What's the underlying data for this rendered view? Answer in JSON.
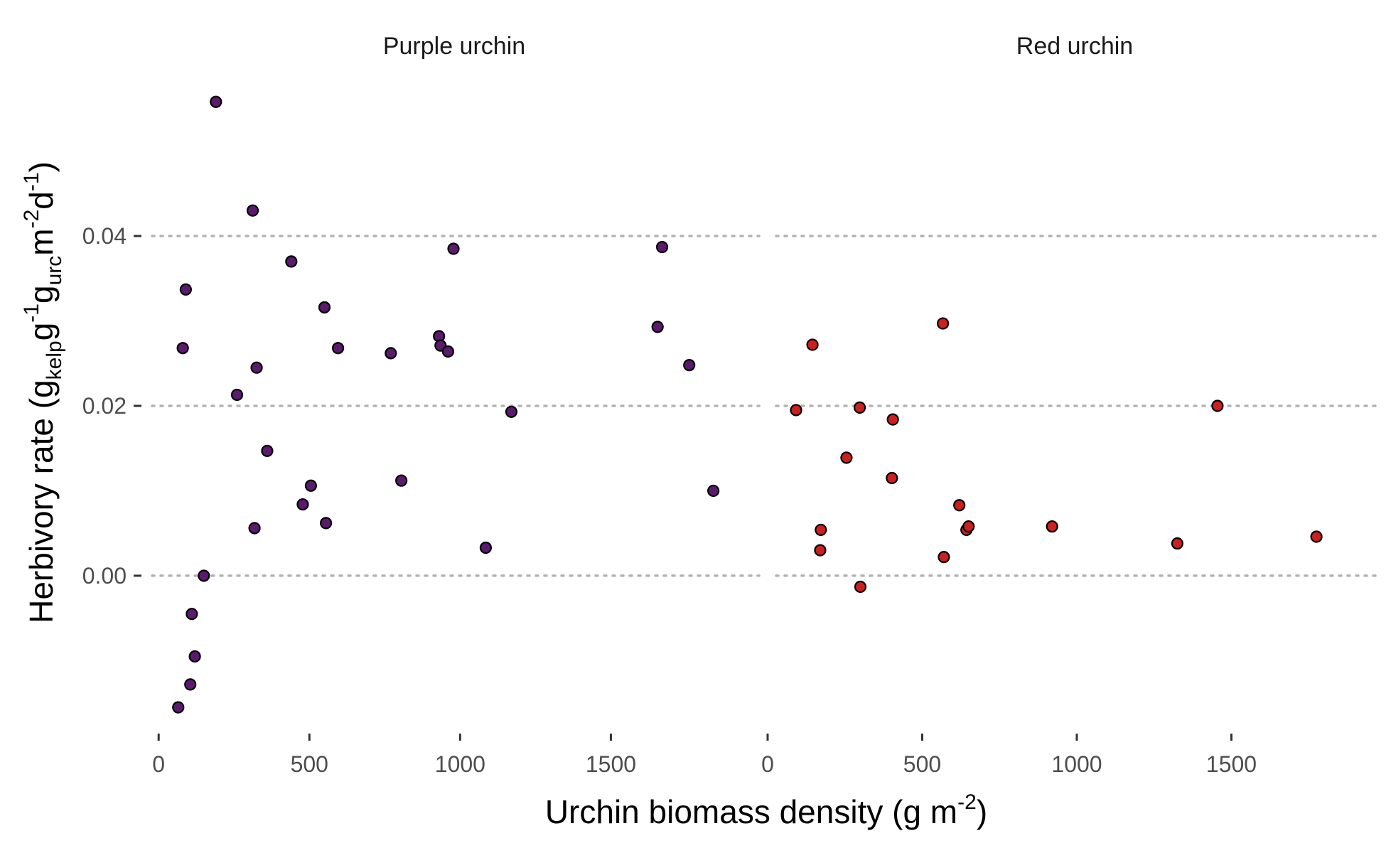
{
  "chart_data": {
    "type": "scatter",
    "xlabel": {
      "main": "Urchin biomass density (g m",
      "sup": "-2",
      "close": ")"
    },
    "ylabel": {
      "main": "Herbivory rate (g",
      "sub1": "kelp",
      "mid1": "g",
      "sup1": "-1",
      "mid2": "g",
      "sub2": "urc",
      "mid3": "m",
      "sup2": "-2",
      "mid4": "d",
      "sup3": "-1",
      "close": ")"
    },
    "y_ticks": [
      {
        "value": 0.0,
        "label": "0.00"
      },
      {
        "value": 0.02,
        "label": "0.02"
      },
      {
        "value": 0.04,
        "label": "0.04"
      }
    ],
    "ylim": [
      -0.018,
      0.059
    ],
    "grid": "horizontal-dotted",
    "legend": "none",
    "panels": [
      {
        "title": "Purple urchin",
        "color": "#5b1a6e",
        "xlim": [
          -50,
          2020
        ],
        "x_ticks": [
          {
            "value": 0,
            "label": "0"
          },
          {
            "value": 500,
            "label": "500"
          },
          {
            "value": 1000,
            "label": "1000"
          },
          {
            "value": 1500,
            "label": "1500"
          }
        ],
        "points": [
          {
            "x": 190,
            "y": 0.0558
          },
          {
            "x": 312,
            "y": 0.043
          },
          {
            "x": 440,
            "y": 0.037
          },
          {
            "x": 90,
            "y": 0.0337
          },
          {
            "x": 550,
            "y": 0.0316
          },
          {
            "x": 80,
            "y": 0.0268
          },
          {
            "x": 595,
            "y": 0.0268
          },
          {
            "x": 770,
            "y": 0.0262
          },
          {
            "x": 325,
            "y": 0.0245
          },
          {
            "x": 260,
            "y": 0.0213
          },
          {
            "x": 360,
            "y": 0.0147
          },
          {
            "x": 505,
            "y": 0.0106
          },
          {
            "x": 478,
            "y": 0.0084
          },
          {
            "x": 555,
            "y": 0.0062
          },
          {
            "x": 318,
            "y": 0.0056
          },
          {
            "x": 805,
            "y": 0.0112
          },
          {
            "x": 930,
            "y": 0.0282
          },
          {
            "x": 935,
            "y": 0.0271
          },
          {
            "x": 960,
            "y": 0.0264
          },
          {
            "x": 978,
            "y": 0.0385
          },
          {
            "x": 1085,
            "y": 0.0033
          },
          {
            "x": 1170,
            "y": 0.0193
          },
          {
            "x": 150,
            "y": 0.0
          },
          {
            "x": 110,
            "y": -0.0045
          },
          {
            "x": 120,
            "y": -0.0095
          },
          {
            "x": 105,
            "y": -0.0128
          },
          {
            "x": 65,
            "y": -0.0155
          },
          {
            "x": 1670,
            "y": 0.0387
          },
          {
            "x": 1655,
            "y": 0.0293
          },
          {
            "x": 1760,
            "y": 0.0248
          },
          {
            "x": 1840,
            "y": 0.01
          }
        ]
      },
      {
        "title": "Red urchin",
        "color": "#cc1f1f",
        "xlim": [
          0,
          2000
        ],
        "x_ticks": [
          {
            "value": 0,
            "label": "0"
          },
          {
            "value": 500,
            "label": "500"
          },
          {
            "value": 1000,
            "label": "1000"
          },
          {
            "value": 1500,
            "label": "1500"
          }
        ],
        "points": [
          {
            "x": 92,
            "y": 0.0195
          },
          {
            "x": 145,
            "y": 0.0272
          },
          {
            "x": 170,
            "y": 0.003
          },
          {
            "x": 172,
            "y": 0.0054
          },
          {
            "x": 255,
            "y": 0.0139
          },
          {
            "x": 298,
            "y": 0.0198
          },
          {
            "x": 300,
            "y": -0.0013
          },
          {
            "x": 402,
            "y": 0.0115
          },
          {
            "x": 405,
            "y": 0.0184
          },
          {
            "x": 567,
            "y": 0.0297
          },
          {
            "x": 570,
            "y": 0.0022
          },
          {
            "x": 620,
            "y": 0.0083
          },
          {
            "x": 643,
            "y": 0.0054
          },
          {
            "x": 650,
            "y": 0.0058
          },
          {
            "x": 920,
            "y": 0.0058
          },
          {
            "x": 1325,
            "y": 0.0038
          },
          {
            "x": 1455,
            "y": 0.02
          },
          {
            "x": 1775,
            "y": 0.0046
          }
        ]
      }
    ]
  }
}
